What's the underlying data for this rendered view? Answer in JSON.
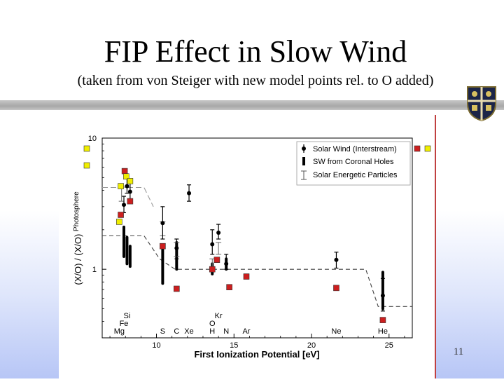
{
  "slide": {
    "title": "FIP Effect in Slow Wind",
    "subtitle": "(taken from von Steiger with new model points rel. to O added)",
    "page_number": "11"
  },
  "colors": {
    "model_square": "#cc1f1f",
    "model_square_yellow": "#f0ee00",
    "figure_border": "#c04040"
  },
  "chart_data": {
    "type": "scatter",
    "xlabel": "First Ionization Potential [eV]",
    "ylabel": "(X/O) / (X/O)Photosphere",
    "ylabel_main": "(X/O) / (X/O)",
    "ylabel_sub": "Photosphere",
    "xlim": [
      6.5,
      26.5
    ],
    "ylim": [
      0.3,
      10
    ],
    "yscale": "log",
    "xticks": [
      "10",
      "15",
      "20",
      "25"
    ],
    "xtick_values": [
      10,
      15,
      20,
      25
    ],
    "yticks": [
      "1",
      "10"
    ],
    "ytick_values": [
      1,
      10
    ],
    "legend_position": "top-right",
    "legend": [
      {
        "label": "Solar Wind (Interstream)",
        "style": "point"
      },
      {
        "label": "SW from Coronal Holes",
        "style": "thick-bar"
      },
      {
        "label": "Solar Energetic Particles",
        "style": "thin-bar"
      }
    ],
    "element_labels": [
      {
        "text": "Mg",
        "x": 7.6,
        "row": 0
      },
      {
        "text": "Fe",
        "x": 7.9,
        "row": 1
      },
      {
        "text": "Si",
        "x": 8.1,
        "row": 2
      },
      {
        "text": "S",
        "x": 10.4,
        "row": 0
      },
      {
        "text": "C",
        "x": 11.3,
        "row": 0
      },
      {
        "text": "Xe",
        "x": 12.1,
        "row": 0
      },
      {
        "text": "H",
        "x": 13.6,
        "row": 0
      },
      {
        "text": "O",
        "x": 13.6,
        "row": 1
      },
      {
        "text": "Kr",
        "x": 14.0,
        "row": 2
      },
      {
        "text": "N",
        "x": 14.5,
        "row": 0
      },
      {
        "text": "Ar",
        "x": 15.8,
        "row": 0
      },
      {
        "text": "Ne",
        "x": 21.6,
        "row": 0
      },
      {
        "text": "He",
        "x": 24.6,
        "row": 0
      }
    ],
    "solar_wind_interstream": [
      {
        "x": 7.9,
        "y": 3.1,
        "lo": 2.7,
        "hi": 3.6
      },
      {
        "x": 8.1,
        "y": 4.3,
        "lo": 3.8,
        "hi": 5.0
      },
      {
        "x": 8.3,
        "y": 3.9,
        "lo": 3.3,
        "hi": 4.5
      },
      {
        "x": 10.4,
        "y": 2.25,
        "lo": 1.7,
        "hi": 3.0
      },
      {
        "x": 11.3,
        "y": 1.45,
        "lo": 1.2,
        "hi": 1.7
      },
      {
        "x": 12.1,
        "y": 3.8,
        "lo": 3.3,
        "hi": 4.4
      },
      {
        "x": 13.6,
        "y": 1.55,
        "lo": 1.3,
        "hi": 2.0
      },
      {
        "x": 14.0,
        "y": 1.9,
        "lo": 1.7,
        "hi": 2.2
      },
      {
        "x": 14.5,
        "y": 1.1,
        "lo": 1.0,
        "hi": 1.3
      },
      {
        "x": 21.6,
        "y": 1.18,
        "lo": 1.02,
        "hi": 1.35
      },
      {
        "x": 24.6,
        "y": 0.63,
        "lo": 0.48,
        "hi": 0.85
      }
    ],
    "coronal_holes_ranges": [
      {
        "x": 7.9,
        "lo": 1.25,
        "hi": 2.1
      },
      {
        "x": 8.1,
        "lo": 1.1,
        "hi": 1.75
      },
      {
        "x": 8.3,
        "lo": 1.05,
        "hi": 1.5
      },
      {
        "x": 10.4,
        "lo": 0.78,
        "hi": 1.45
      },
      {
        "x": 11.3,
        "lo": 1.0,
        "hi": 1.6
      },
      {
        "x": 13.6,
        "lo": 0.92,
        "hi": 1.1
      },
      {
        "x": 14.5,
        "lo": 1.0,
        "hi": 1.2
      },
      {
        "x": 24.6,
        "lo": 0.5,
        "hi": 0.95
      }
    ],
    "energetic_particles_ranges": [
      {
        "x": 7.75,
        "lo": 3.3,
        "hi": 4.3
      },
      {
        "x": 10.4,
        "lo": 1.8,
        "hi": 2.3
      },
      {
        "x": 11.3,
        "lo": 1.25,
        "hi": 1.6
      },
      {
        "x": 13.6,
        "lo": 1.0,
        "hi": 1.2
      },
      {
        "x": 14.0,
        "lo": 1.3,
        "hi": 1.6
      }
    ],
    "photosphere_fip_step_dashed": [
      {
        "x": 6.5,
        "y": 1.8
      },
      {
        "x": 9.2,
        "y": 1.8
      },
      {
        "x": 10.2,
        "y": 1.2
      },
      {
        "x": 11.2,
        "y": 1.0
      },
      {
        "x": 23.5,
        "y": 1.0
      },
      {
        "x": 24.3,
        "y": 0.52
      },
      {
        "x": 26.5,
        "y": 0.52
      }
    ],
    "high_fip_step_dashed": [
      {
        "x": 6.5,
        "y": 4.2
      },
      {
        "x": 9.2,
        "y": 4.2
      },
      {
        "x": 9.8,
        "y": 3.0
      }
    ],
    "model_points": [
      {
        "x": 7.7,
        "y": 2.6,
        "color": "red"
      },
      {
        "x": 7.95,
        "y": 5.6,
        "color": "red"
      },
      {
        "x": 8.3,
        "y": 3.3,
        "color": "red"
      },
      {
        "x": 10.4,
        "y": 1.5,
        "color": "red"
      },
      {
        "x": 11.3,
        "y": 0.71,
        "color": "red"
      },
      {
        "x": 13.6,
        "y": 1.0,
        "color": "red"
      },
      {
        "x": 13.9,
        "y": 1.18,
        "color": "red"
      },
      {
        "x": 14.7,
        "y": 0.73,
        "color": "red"
      },
      {
        "x": 15.8,
        "y": 0.88,
        "color": "red"
      },
      {
        "x": 21.6,
        "y": 0.72,
        "color": "red"
      },
      {
        "x": 24.6,
        "y": 0.41,
        "color": "red"
      },
      {
        "x": 7.7,
        "y": 4.3,
        "color": "yellow"
      },
      {
        "x": 8.05,
        "y": 5.1,
        "color": "yellow"
      },
      {
        "x": 8.3,
        "y": 4.7,
        "color": "yellow"
      },
      {
        "x": 7.6,
        "y": 2.3,
        "color": "yellow"
      }
    ],
    "outside_markers": [
      {
        "side": "left",
        "row": 0,
        "color": "yellow"
      },
      {
        "side": "left",
        "row": 1,
        "color": "yellow"
      },
      {
        "side": "right",
        "row": 0,
        "color": "red"
      },
      {
        "side": "right",
        "row": 0,
        "color": "yellow"
      }
    ]
  }
}
